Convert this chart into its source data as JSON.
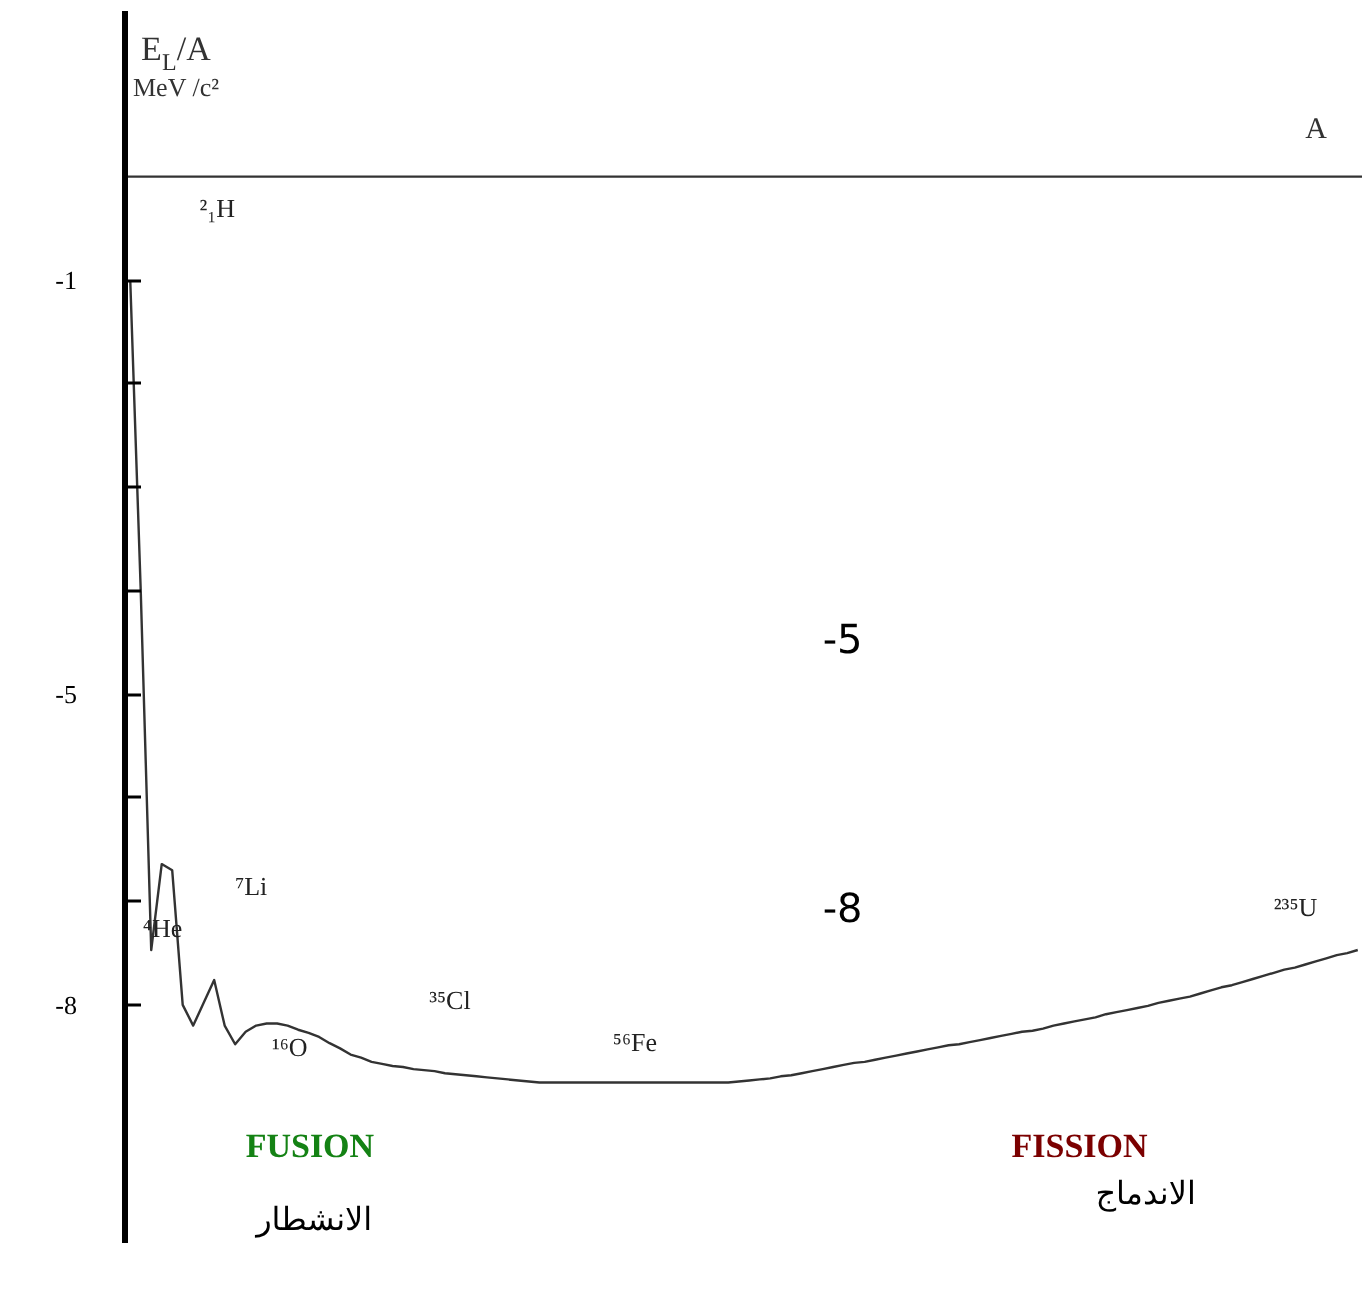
{
  "chart_data": {
    "type": "line",
    "ylabel": "E$_{L}$/A\nMeV /c²",
    "xlabel": "A",
    "categories": [
      null,
      null,
      null,
      null,
      null,
      null,
      null,
      null,
      null,
      null,
      null,
      null,
      null,
      null,
      null,
      null,
      null,
      null,
      null,
      null,
      null,
      null,
      null,
      null,
      null,
      null,
      null,
      null,
      null,
      null,
      null,
      null,
      null,
      null,
      null,
      null,
      null,
      null,
      null,
      null,
      null,
      null,
      null,
      null,
      null,
      null,
      null,
      null,
      null,
      null,
      null,
      null,
      null,
      null,
      null,
      null,
      null,
      null,
      null,
      null,
      null,
      null,
      null,
      null,
      null,
      null,
      null,
      null,
      null,
      null,
      null,
      null,
      null,
      null,
      null,
      null,
      null,
      null,
      null,
      null,
      null,
      null,
      null,
      null,
      null,
      null,
      null,
      null,
      null,
      null,
      null,
      null,
      null,
      null,
      null,
      null,
      null,
      null,
      null,
      null,
      null,
      null,
      null,
      null,
      null,
      null,
      null,
      null,
      null,
      null,
      null,
      null,
      null,
      null,
      null,
      null,
      null,
      null
    ],
    "series": [
      {
        "color": "#333333",
        "values": [
          -1.0,
          -4.0,
          -7.47,
          -6.64,
          -6.7,
          -8.0,
          -8.2,
          -7.98,
          -7.76,
          -8.2,
          -8.38,
          -8.26,
          -8.2,
          -8.18,
          -8.18,
          -8.2,
          -8.24,
          -8.27,
          -8.31,
          -8.37,
          -8.42,
          -8.48,
          -8.51,
          -8.55,
          -8.57,
          -8.59,
          -8.6,
          -8.62,
          -8.63,
          -8.64,
          -8.66,
          -8.67,
          -8.68,
          -8.69,
          -8.7,
          -8.71,
          -8.72,
          -8.73,
          -8.74,
          -8.75,
          -8.75,
          -8.75,
          -8.75,
          -8.75,
          -8.75,
          -8.75,
          -8.75,
          -8.75,
          -8.75,
          -8.75,
          -8.75,
          -8.75,
          -8.75,
          -8.75,
          -8.75,
          -8.75,
          -8.75,
          -8.75,
          -8.74,
          -8.73,
          -8.72,
          -8.71,
          -8.69,
          -8.68,
          -8.66,
          -8.64,
          -8.62,
          -8.6,
          -8.58,
          -8.56,
          -8.55,
          -8.53,
          -8.51,
          -8.49,
          -8.47,
          -8.45,
          -8.43,
          -8.41,
          -8.39,
          -8.38,
          -8.36,
          -8.34,
          -8.32,
          -8.3,
          -8.28,
          -8.26,
          -8.25,
          -8.23,
          -8.2,
          -8.18,
          -8.16,
          -8.14,
          -8.12,
          -8.09,
          -8.07,
          -8.05,
          -8.03,
          -8.01,
          -7.98,
          -7.96,
          -7.94,
          -7.92,
          -7.89,
          -7.86,
          -7.83,
          -7.81,
          -7.78,
          -7.75,
          -7.72,
          -7.69,
          -7.66,
          -7.64,
          -7.61,
          -7.58,
          -7.55,
          -7.52,
          -7.5,
          -7.47
        ]
      }
    ],
    "ylim": [
      -10.3,
      1.6
    ],
    "yticks": [
      -1,
      {
        "value": -2,
        "label": null
      },
      {
        "value": -3,
        "label": null
      },
      {
        "value": -4,
        "label": null
      },
      -5,
      {
        "value": -6,
        "label": null
      },
      {
        "value": -7,
        "label": null
      },
      -8
    ],
    "tick_labels": "y",
    "grid": false,
    "annotations": [
      "²₁H",
      "⁴He",
      "⁷Li",
      "¹⁶O",
      "³⁵Cl",
      "⁵⁶Fe",
      "²³⁵U",
      "-5",
      "-8",
      "FUSION",
      "FISSION",
      "الانشطار",
      "الاندماج"
    ]
  }
}
